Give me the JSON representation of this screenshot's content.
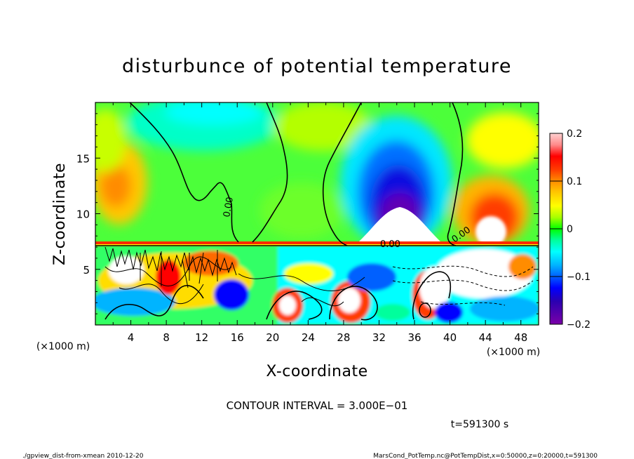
{
  "chart_data": {
    "type": "heatmap",
    "title": "disturbunce of potential temperature",
    "xlabel": "X-coordinate",
    "ylabel": "Z-coordinate",
    "x_unit": "(×1000 m)",
    "x_unit_right": "(×1000 m)",
    "y_unit": "(×1000 m)",
    "xlim": [
      0,
      50
    ],
    "ylim": [
      0,
      20
    ],
    "xticks": [
      "4",
      "8",
      "12",
      "16",
      "20",
      "24",
      "28",
      "32",
      "36",
      "40",
      "44",
      "48"
    ],
    "yticks": [
      "5",
      "10",
      "15"
    ],
    "colorbar": {
      "range": [
        -0.2,
        0.2
      ],
      "ticks": [
        "0.2",
        "0.1",
        "0",
        "−0.1",
        "−0.2"
      ]
    },
    "contour_labels": [
      "0.00",
      "0.00",
      "0.00"
    ],
    "contour_interval": "CONTOUR INTERVAL = 3.000E−01",
    "time": "t=591300 s",
    "footer_left": "./gpview_dist-from-xmean  2010-12-20",
    "footer_right": "MarsCond_PotTemp.nc@PotTempDist,x=0:50000,z=0:20000,t=591300"
  },
  "colors": {
    "scale": [
      "#7b00a8",
      "#2b00b0",
      "#0000ff",
      "#005fff",
      "#00b4ff",
      "#00ffff",
      "#00ff9c",
      "#00ff00",
      "#a8ff00",
      "#ffff00",
      "#ffc800",
      "#ff8c00",
      "#ff3c00",
      "#ff0000",
      "#ff8a8a",
      "#ffd2d2"
    ]
  }
}
